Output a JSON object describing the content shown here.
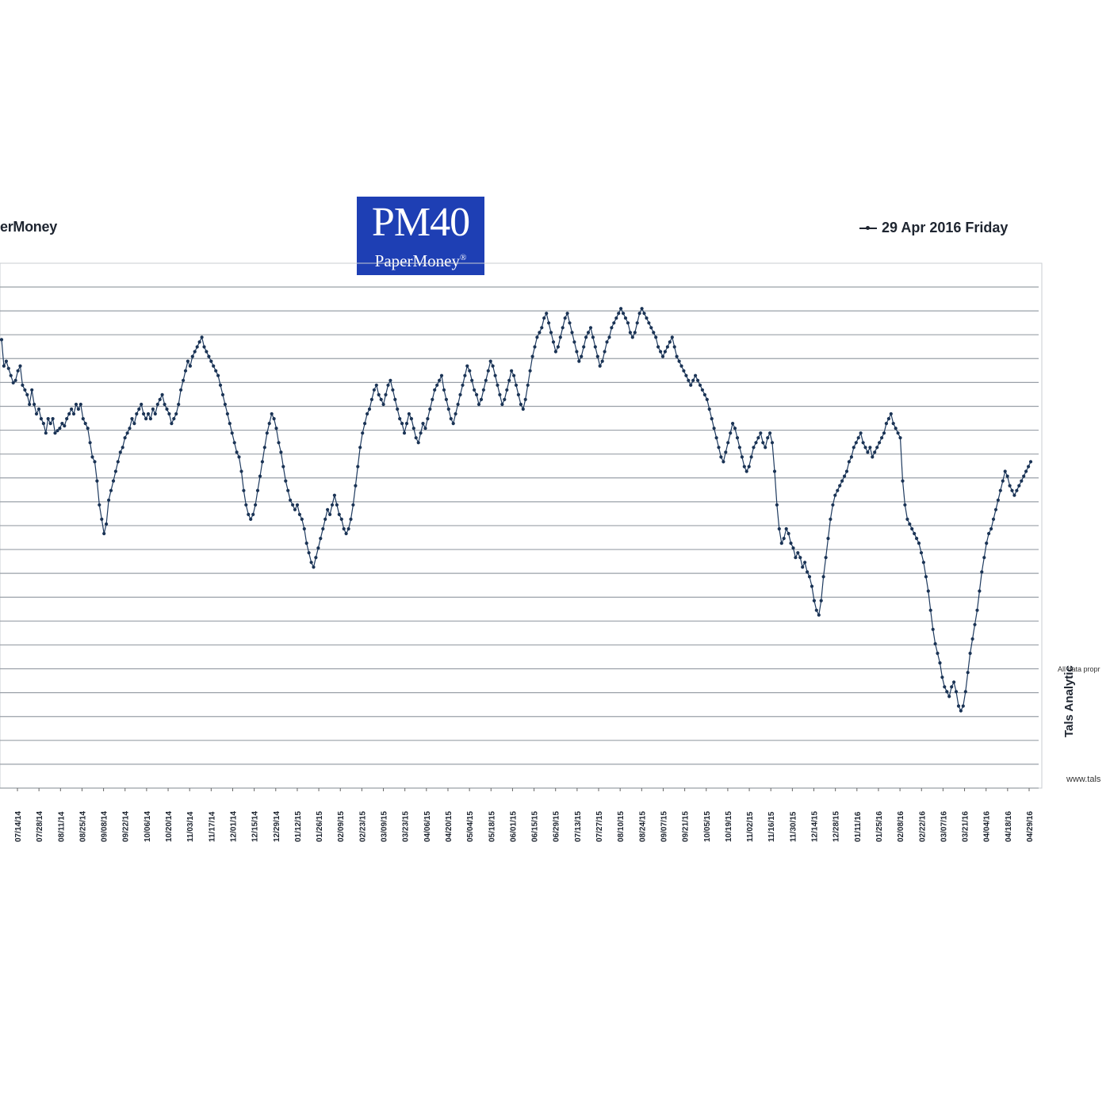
{
  "legend": {
    "left_label": "erMoney",
    "right_label": "29 Apr 2016 Friday"
  },
  "logo": {
    "title": "PM40",
    "subtitle": "PaperMoney",
    "mark": "®"
  },
  "side_text": {
    "note": "All data propr",
    "url": "www.tals",
    "vertical": "Tals Analytic"
  },
  "colors": {
    "line": "#1e3a5f",
    "marker": "#1a3355",
    "grid": "#9aa0a8",
    "logo_bg": "#1e3fb4"
  },
  "chart_data": {
    "type": "line",
    "title": "PM40",
    "xlabel": "",
    "ylabel": "",
    "grid": true,
    "legend_placement": "top-right",
    "series": [
      {
        "name": "29 Apr 2016 Friday",
        "values": [
          89.5,
          84,
          85,
          83.5,
          82,
          80.5,
          81,
          83,
          84,
          80,
          79,
          78,
          76,
          79,
          76,
          74,
          75,
          73,
          72,
          70,
          73,
          72,
          73,
          70,
          70.5,
          71,
          72,
          71.5,
          73,
          74,
          75,
          74,
          76,
          75,
          76,
          73,
          72,
          71,
          68,
          65,
          64,
          60,
          55,
          52,
          49,
          51,
          56,
          58,
          60,
          62,
          64,
          66,
          67,
          69,
          70,
          71,
          73,
          72,
          74,
          75,
          76,
          74,
          73,
          74,
          73,
          75,
          74,
          76,
          77,
          78,
          76,
          75,
          74,
          72,
          73,
          74,
          76,
          79,
          81,
          83,
          85,
          84,
          86,
          87,
          88,
          89,
          90,
          88,
          87,
          86,
          85,
          84,
          83,
          82,
          80,
          78,
          76,
          74,
          72,
          70,
          68,
          66,
          65,
          62,
          58,
          55,
          53,
          52,
          53,
          55,
          58,
          61,
          64,
          67,
          70,
          72,
          74,
          73,
          71,
          68,
          66,
          63,
          60,
          58,
          56,
          55,
          54,
          55,
          53,
          52,
          50,
          47,
          45,
          43,
          42,
          44,
          46,
          48,
          50,
          52,
          54,
          53,
          55,
          57,
          55,
          53,
          52,
          50,
          49,
          50,
          52,
          55,
          59,
          63,
          67,
          70,
          72,
          74,
          75,
          77,
          79,
          80,
          78,
          77,
          76,
          78,
          80,
          81,
          79,
          77,
          75,
          73,
          72,
          70,
          72,
          74,
          73,
          71,
          69,
          68,
          70,
          72,
          71,
          73,
          75,
          77,
          79,
          80,
          81,
          82,
          79,
          77,
          75,
          73,
          72,
          74,
          76,
          78,
          80,
          82,
          84,
          83,
          81,
          79,
          78,
          76,
          77,
          79,
          81,
          83,
          85,
          84,
          82,
          80,
          78,
          76,
          77,
          79,
          81,
          83,
          82,
          80,
          78,
          76,
          75,
          77,
          80,
          83,
          86,
          88,
          90,
          91,
          92,
          94,
          95,
          93,
          91,
          89,
          87,
          88,
          90,
          92,
          94,
          95,
          93,
          91,
          89,
          87,
          85,
          86,
          88,
          90,
          91,
          92,
          90,
          88,
          86,
          84,
          85,
          87,
          89,
          90,
          92,
          93,
          94,
          95,
          96,
          95,
          94,
          93,
          91,
          90,
          91,
          93,
          95,
          96,
          95,
          94,
          93,
          92,
          91,
          90,
          88,
          87,
          86,
          87,
          88,
          89,
          90,
          88,
          86,
          85,
          84,
          83,
          82,
          81,
          80,
          81,
          82,
          81,
          80,
          79,
          78,
          77,
          75,
          73,
          71,
          69,
          67,
          65,
          64,
          66,
          68,
          70,
          72,
          71,
          69,
          67,
          65,
          63,
          62,
          63,
          65,
          67,
          68,
          69,
          70,
          68,
          67,
          69,
          70,
          68,
          62,
          55,
          50,
          47,
          48,
          50,
          49,
          47,
          46,
          44,
          45,
          44,
          42,
          43,
          41,
          40,
          38,
          35,
          33,
          32,
          35,
          40,
          44,
          48,
          52,
          55,
          57,
          58,
          59,
          60,
          61,
          62,
          64,
          65,
          67,
          68,
          69,
          70,
          68,
          67,
          66,
          67,
          65,
          66,
          67,
          68,
          69,
          70,
          72,
          73,
          74,
          72,
          71,
          70,
          69,
          60,
          55,
          52,
          51,
          50,
          49,
          48,
          47,
          45,
          43,
          40,
          37,
          33,
          29,
          26,
          24,
          22,
          19,
          17,
          16,
          15,
          17,
          18,
          16,
          13,
          12,
          13,
          16,
          20,
          24,
          27,
          30,
          33,
          37,
          41,
          44,
          47,
          49,
          50,
          52,
          54,
          56,
          58,
          60,
          62,
          61,
          59,
          58,
          57,
          58,
          59,
          60,
          61,
          62,
          63,
          64
        ]
      }
    ],
    "x_tick_labels": [
      "07/14/14",
      "07/28/14",
      "08/11/14",
      "08/25/14",
      "09/08/14",
      "09/22/14",
      "10/06/14",
      "10/20/14",
      "11/03/14",
      "11/17/14",
      "12/01/14",
      "12/15/14",
      "12/29/14",
      "01/12/15",
      "01/26/15",
      "02/09/15",
      "02/23/15",
      "03/09/15",
      "03/23/15",
      "04/06/15",
      "04/20/15",
      "05/04/15",
      "05/18/15",
      "06/01/15",
      "06/15/15",
      "06/29/15",
      "07/13/15",
      "07/27/15",
      "08/10/15",
      "08/24/15",
      "09/07/15",
      "09/21/15",
      "10/05/15",
      "10/19/15",
      "11/02/15",
      "11/16/15",
      "11/30/15",
      "12/14/15",
      "12/28/15",
      "01/11/16",
      "01/25/16",
      "02/08/16",
      "02/22/16",
      "03/07/16",
      "03/21/16",
      "04/04/16",
      "04/18/16",
      "04/29/16"
    ],
    "ylim": [
      0,
      100
    ]
  }
}
